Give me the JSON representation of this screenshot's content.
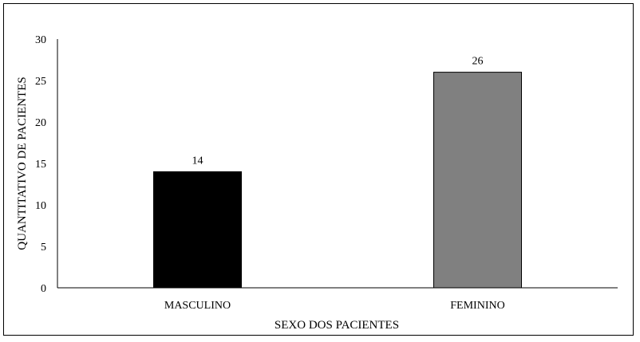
{
  "chart_data": {
    "type": "bar",
    "title": "",
    "categories": [
      "MASCULINO",
      "FEMININO"
    ],
    "values": [
      14,
      26
    ],
    "colors": [
      "#000000",
      "#808080"
    ],
    "xlabel": "SEXO DOS PACIENTES",
    "ylabel": "QUANTITATIVO DE PACIENTES",
    "ylim": [
      0,
      30
    ],
    "yticks": [
      "0",
      "5",
      "10",
      "15",
      "20",
      "25",
      "30"
    ],
    "data_labels": [
      "14",
      "26"
    ],
    "grid": false,
    "legend": "none"
  }
}
